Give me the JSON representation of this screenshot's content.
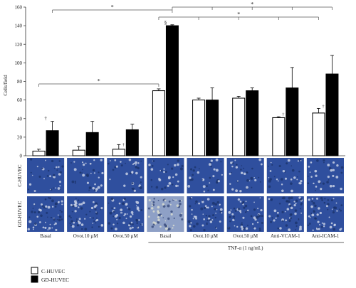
{
  "chart_data": {
    "type": "bar",
    "ylabel": "Cells/field",
    "ylim": [
      0,
      160
    ],
    "yticks": [
      0,
      20,
      40,
      60,
      80,
      100,
      120,
      140,
      160
    ],
    "categories": [
      "Basal",
      "Ovot.10 µM",
      "Ovot.50 µM",
      "Basal",
      "Ovot.10 µM",
      "Ovot.50 µM",
      "Anti-VCAM-1",
      "Anti-ICAM-1"
    ],
    "group_label": "TNF-α (1 ng/mL)",
    "group_categories": [
      3,
      4,
      5,
      6,
      7
    ],
    "series": [
      {
        "name": "C-HUVEC",
        "color": "#ffffff",
        "values": [
          5,
          6,
          7,
          70,
          60,
          62,
          41,
          46
        ],
        "errors": [
          2,
          4,
          5,
          2,
          2,
          2,
          1,
          5
        ]
      },
      {
        "name": "GD-HUVEC",
        "color": "#000000",
        "values": [
          27,
          25,
          28,
          140,
          60,
          70,
          73,
          88
        ],
        "errors": [
          10,
          12,
          6,
          1,
          13,
          3,
          22,
          20
        ]
      }
    ],
    "row_labels": [
      "C-HUVEC",
      "GD-HUVEC"
    ],
    "legend_position": "bottom-left",
    "annotations": {
      "star": "*",
      "dagger": "†",
      "double_dagger": "‡",
      "section": "§"
    }
  }
}
